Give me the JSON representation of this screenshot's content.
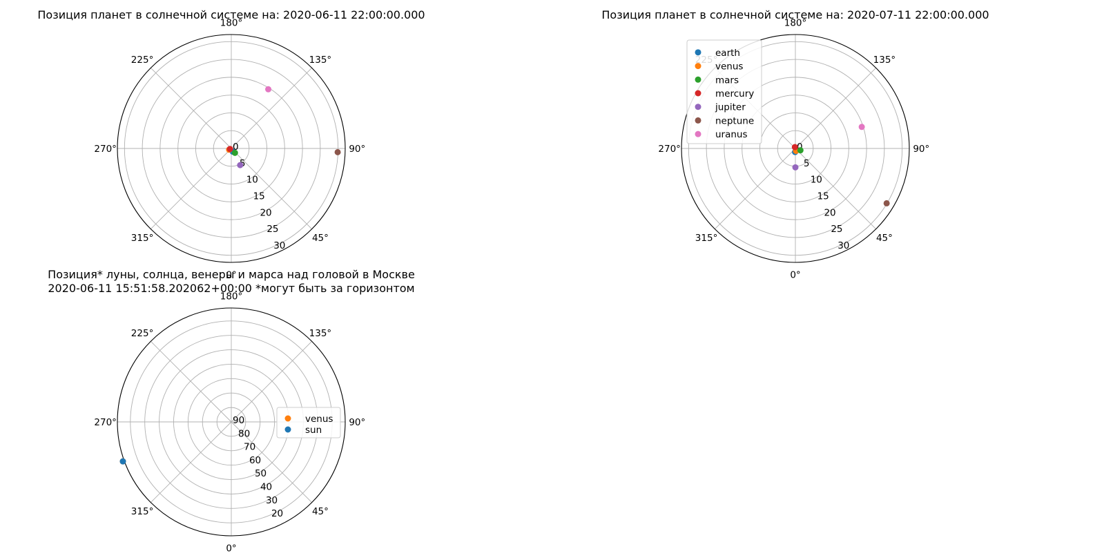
{
  "colors": {
    "earth": "#1f77b4",
    "venus": "#ff7f0e",
    "mars": "#2ca02c",
    "mercury": "#d62728",
    "jupiter": "#9467bd",
    "neptune": "#8c564b",
    "uranus": "#e377c2",
    "grid": "#b0b0b0"
  },
  "chart_data": [
    {
      "type": "scatter",
      "projection": "polar",
      "title": "Позиция планет в солнечной системе на: 2020-06-11 22:00:00.000",
      "theta_tick_labels": [
        "0°",
        "45°",
        "90°",
        "135°",
        "180°",
        "225°",
        "270°",
        "315°"
      ],
      "r_tick_labels": [
        "0",
        "5",
        "10",
        "15",
        "20",
        "25",
        "30"
      ],
      "rlim": [
        0,
        32
      ],
      "theta_zero_location": "bottom",
      "theta_direction": "counterclockwise",
      "grid": true,
      "legend": null,
      "series": [
        {
          "name": "earth",
          "theta": 25,
          "r": 1.0
        },
        {
          "name": "venus",
          "theta": 300,
          "r": 0.7
        },
        {
          "name": "mars",
          "theta": 40,
          "r": 1.6
        },
        {
          "name": "mercury",
          "theta": 290,
          "r": 0.4
        },
        {
          "name": "jupiter",
          "theta": 28,
          "r": 5.3
        },
        {
          "name": "neptune",
          "theta": 88,
          "r": 29.9
        },
        {
          "name": "uranus",
          "theta": 148,
          "r": 19.6
        }
      ]
    },
    {
      "type": "scatter",
      "projection": "polar",
      "title": "Позиция планет в солнечной системе на: 2020-07-11 22:00:00.000",
      "theta_tick_labels": [
        "0°",
        "45°",
        "90°",
        "135°",
        "180°",
        "225°",
        "270°",
        "315°"
      ],
      "r_tick_labels": [
        "0",
        "5",
        "10",
        "15",
        "20",
        "25",
        "30"
      ],
      "rlim": [
        0,
        32
      ],
      "theta_zero_location": "bottom",
      "theta_direction": "counterclockwise",
      "grid": true,
      "legend": "upper left",
      "series": [
        {
          "name": "earth",
          "theta": 355,
          "r": 1.0
        },
        {
          "name": "venus",
          "theta": 15,
          "r": 0.7
        },
        {
          "name": "mars",
          "theta": 70,
          "r": 1.5
        },
        {
          "name": "mercury",
          "theta": 200,
          "r": 0.4
        },
        {
          "name": "jupiter",
          "theta": 0,
          "r": 5.3
        },
        {
          "name": "neptune",
          "theta": 59,
          "r": 29.9
        },
        {
          "name": "uranus",
          "theta": 108,
          "r": 19.6
        }
      ]
    },
    {
      "type": "scatter",
      "projection": "polar",
      "title": "Позиция* луны, солнца, венеры и марса над головой в Москве",
      "subtitle": "2020-06-11 15:51:58.202062+00:00  *могут быть за горизонтом",
      "theta_tick_labels": [
        "0°",
        "45°",
        "90°",
        "135°",
        "180°",
        "225°",
        "270°",
        "315°"
      ],
      "r_tick_labels": [
        "90",
        "80",
        "70",
        "60",
        "50",
        "40",
        "30",
        "20"
      ],
      "r_axis": "altitude (90 at center)",
      "rlim": [
        90,
        11
      ],
      "theta_zero_location": "bottom",
      "theta_direction": "counterclockwise",
      "grid": true,
      "legend": "center right",
      "series": [
        {
          "name": "venus",
          "theta": 290,
          "alt": 10
        },
        {
          "name": "sun",
          "theta": 290,
          "alt": 10
        }
      ]
    }
  ]
}
